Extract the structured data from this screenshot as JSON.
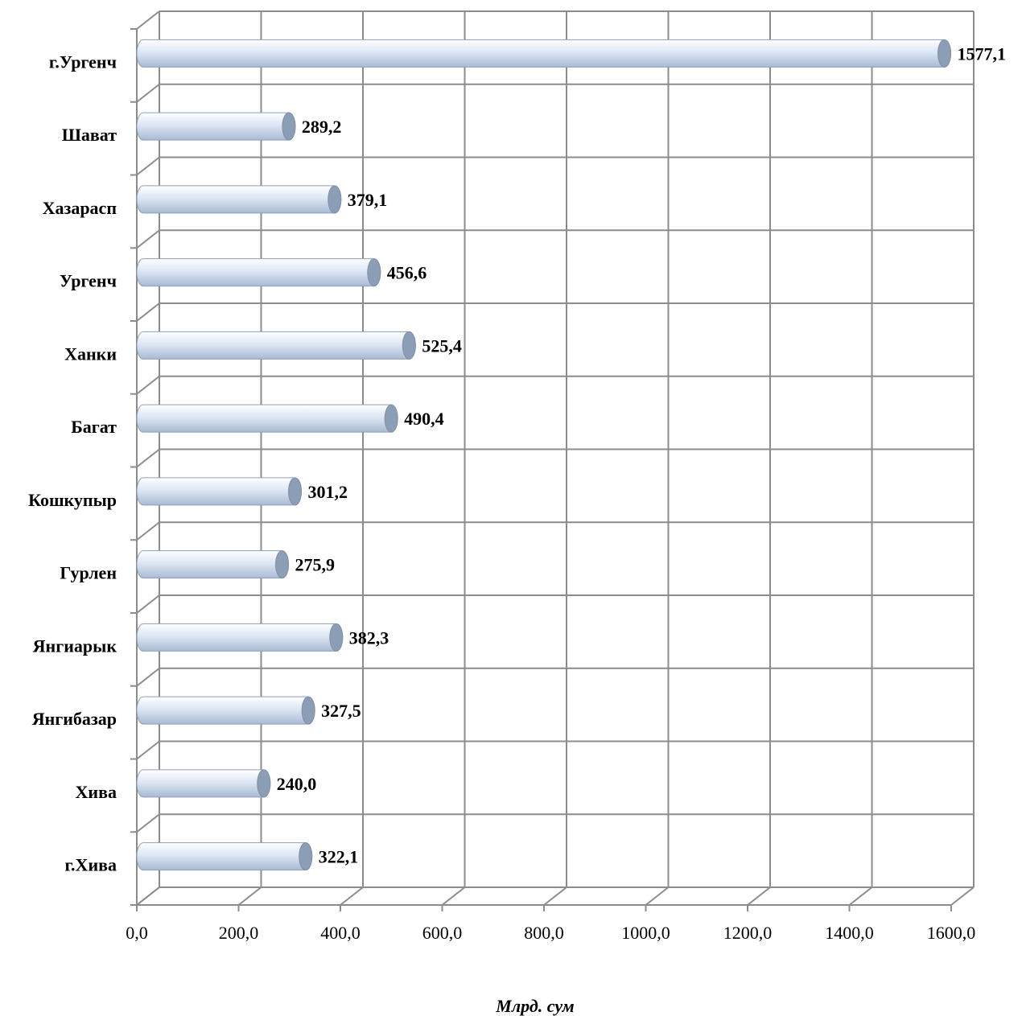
{
  "chart_data": {
    "type": "bar",
    "orientation": "horizontal",
    "categories": [
      "г.Ургенч",
      "Шават",
      "Хазарасп",
      "Ургенч",
      "Ханки",
      "Багат",
      "Кошкупыр",
      "Гурлен",
      "Янгиарык",
      "Янгибазар",
      "Хива",
      "г.Хива"
    ],
    "values": [
      1577.1,
      289.2,
      379.1,
      456.6,
      525.4,
      490.4,
      301.2,
      275.9,
      382.3,
      327.5,
      240.0,
      322.1
    ],
    "value_labels": [
      "1577,1",
      "289,2",
      "379,1",
      "456,6",
      "525,4",
      "490,4",
      "301,2",
      "275,9",
      "382,3",
      "327,5",
      "240,0",
      "322,1"
    ],
    "xlabel": "Млрд. сум",
    "xlim": [
      0,
      1600
    ],
    "x_ticks": [
      0,
      200,
      400,
      600,
      800,
      1000,
      1200,
      1400,
      1600
    ],
    "x_tick_labels": [
      "0,0",
      "200,0",
      "400,0",
      "600,0",
      "800,0",
      "1000,0",
      "1200,0",
      "1400,0",
      "1600,0"
    ],
    "grid": true,
    "legend": "none",
    "colors": {
      "bar_light": "#ffffff",
      "bar_mid": "#dde6f4",
      "bar_dark": "#a9bad3",
      "bar_cap": "#8c9db6",
      "grid": "#8c8c8c"
    }
  }
}
